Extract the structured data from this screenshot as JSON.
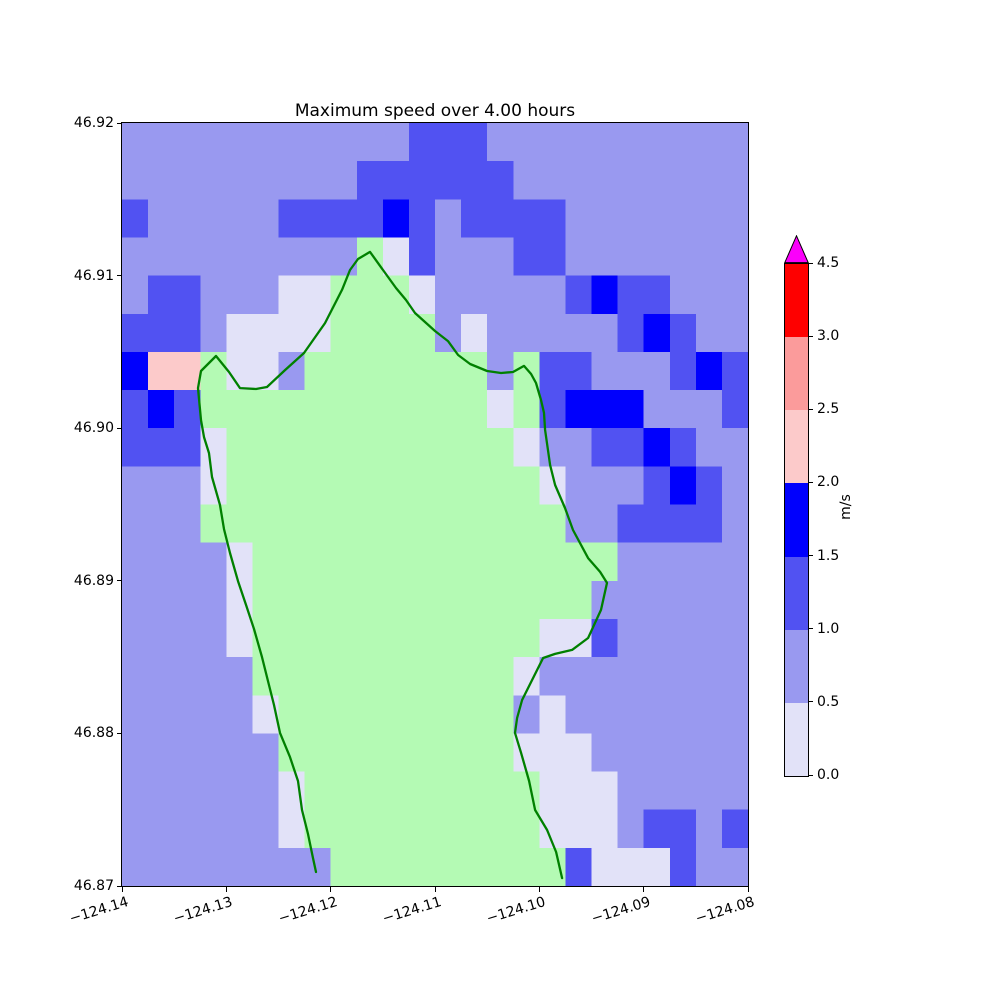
{
  "title": "Maximum speed over 4.00 hours",
  "plot": {
    "x_tick_labels": [
      "−124.14",
      "−124.13",
      "−124.12",
      "−124.11",
      "−124.10",
      "−124.09",
      "−124.08"
    ],
    "x_tick_values": [
      -124.14,
      -124.13,
      -124.12,
      -124.11,
      -124.1,
      -124.09,
      -124.08
    ],
    "y_tick_labels": [
      "46.92",
      "46.91",
      "46.90",
      "46.89",
      "46.88",
      "46.87"
    ],
    "y_tick_values": [
      46.92,
      46.91,
      46.9,
      46.89,
      46.88,
      46.87
    ]
  },
  "colorbar": {
    "label": "m/s",
    "tick_labels": [
      "0.0",
      "0.5",
      "1.0",
      "1.5",
      "2.0",
      "2.5",
      "3.0",
      "4.5"
    ],
    "boundaries": [
      0.0,
      0.5,
      1.0,
      1.5,
      2.0,
      2.5,
      3.0,
      4.5
    ],
    "segment_colors": [
      "#e2e2f8",
      "#9999f0",
      "#5152f2",
      "#0000fd",
      "#fccaca",
      "#fb9b9b",
      "#fe0000"
    ],
    "over_color": "#fb00fb"
  },
  "chart_data": {
    "type": "heatmap",
    "title": "Maximum speed over 4.00 hours",
    "xlabel": "",
    "ylabel": "",
    "units": "m/s",
    "x_range": [
      -124.14,
      -124.08
    ],
    "y_range": [
      46.87,
      46.92
    ],
    "n_cols": 24,
    "n_rows": 20,
    "cell_size_deg": 0.0025,
    "classes": {
      "W": {
        "label": "0.0–0.5 m/s",
        "color": "#e2e2f8"
      },
      "L": {
        "label": "0.5–1.0 m/s",
        "color": "#9999f0"
      },
      "M": {
        "label": "1.0–1.5 m/s",
        "color": "#5152f2"
      },
      "B": {
        "label": "1.5–2.0 m/s",
        "color": "#0000fd"
      },
      "P": {
        "label": "2.0–2.5 m/s",
        "color": "#fccaca"
      },
      "G": {
        "label": "land (masked)",
        "color": "#b4fab4"
      }
    },
    "grid_rows_top_to_bottom": [
      "LLLLLLLLLLLMMMLLLLLLLLLL",
      "LLLLLLLLLMMMMMMLLLLLLLLL",
      "MLLLLLMMMMBMLMMMMLLLLLLL",
      "LLLLLLLLLGWMLLLMMLLLLLLL",
      "LMMLLLWWGGGWLLLLLMBMMLLL",
      "MMMLWWWWGGGGLWLLLLLMBMLL",
      "BPPGWWLGGGGGGGLGMMLLLMBM",
      "MBMGGGGGGGGGGGWGMBBBLLLM",
      "MMMWGGGGGGGGGGGWLLMMBMLL",
      "LLLWGGGGGGGGGGGGWLLLMBML",
      "LLLGGGGGGGGGGGGGGLLMMMML",
      "LLLLWGGGGGGGGGGGGGGLLLLL",
      "LLLLWGGGGGGGGGGGGGLLLLLL",
      "LLLLWGGGGGGGGGGGWWMLLLLL",
      "LLLLLGGGGGGGGGGWLLLLLLLL",
      "LLLLLWGGGGGGGGGLWLLLLLLL",
      "LLLLLLGGGGGGGGGWWWLLLLLL",
      "LLLLLLWGGGGGGGGGWWWLLLLL",
      "LLLLLLWGGGGGGGGGWWWLMMLM",
      "LLLLLLLLGGGGGGGGGMWWWMLL"
    ],
    "coastline_color": "#008000",
    "coastline_lonlat": [
      [
        -124.12141,
        46.87092
      ],
      [
        -124.12169,
        46.87183
      ],
      [
        -124.12217,
        46.87341
      ],
      [
        -124.12275,
        46.87498
      ],
      [
        -124.12313,
        46.87688
      ],
      [
        -124.1239,
        46.87845
      ],
      [
        -124.12486,
        46.88003
      ],
      [
        -124.12543,
        46.88186
      ],
      [
        -124.12601,
        46.88343
      ],
      [
        -124.12658,
        46.885
      ],
      [
        -124.12735,
        46.88684
      ],
      [
        -124.12811,
        46.88841
      ],
      [
        -124.12888,
        46.88998
      ],
      [
        -124.12965,
        46.89182
      ],
      [
        -124.13022,
        46.89339
      ],
      [
        -124.13061,
        46.89496
      ],
      [
        -124.13137,
        46.8968
      ],
      [
        -124.13166,
        46.89837
      ],
      [
        -124.13214,
        46.89942
      ],
      [
        -124.13243,
        46.90053
      ],
      [
        -124.13272,
        46.90263
      ],
      [
        -124.13243,
        46.90375
      ],
      [
        -124.13099,
        46.90473
      ],
      [
        -124.12974,
        46.90368
      ],
      [
        -124.12869,
        46.90263
      ],
      [
        -124.12716,
        46.90257
      ],
      [
        -124.1261,
        46.9027
      ],
      [
        -124.12438,
        46.90381
      ],
      [
        -124.12256,
        46.90493
      ],
      [
        -124.12054,
        46.90689
      ],
      [
        -124.11891,
        46.90906
      ],
      [
        -124.11815,
        46.91037
      ],
      [
        -124.11738,
        46.91109
      ],
      [
        -124.11623,
        46.91155
      ],
      [
        -124.11498,
        46.91037
      ],
      [
        -124.11374,
        46.90919
      ],
      [
        -124.11278,
        46.9084
      ],
      [
        -124.11192,
        46.90755
      ],
      [
        -124.11096,
        46.90696
      ],
      [
        -124.11,
        46.90637
      ],
      [
        -124.10875,
        46.90571
      ],
      [
        -124.10779,
        46.9048
      ],
      [
        -124.10664,
        46.90421
      ],
      [
        -124.10501,
        46.90375
      ],
      [
        -124.10367,
        46.90362
      ],
      [
        -124.10252,
        46.90368
      ],
      [
        -124.10147,
        46.90408
      ],
      [
        -124.10079,
        46.90355
      ],
      [
        -124.10032,
        46.90296
      ],
      [
        -124.09984,
        46.90185
      ],
      [
        -124.09955,
        46.901
      ],
      [
        -124.09945,
        46.89988
      ],
      [
        -124.09897,
        46.89759
      ],
      [
        -124.09849,
        46.89628
      ],
      [
        -124.09754,
        46.89477
      ],
      [
        -124.09677,
        46.89333
      ],
      [
        -124.09533,
        46.89149
      ],
      [
        -124.09418,
        46.89058
      ],
      [
        -124.09351,
        46.88986
      ],
      [
        -124.09409,
        46.88809
      ],
      [
        -124.09533,
        46.88625
      ],
      [
        -124.09686,
        46.88547
      ],
      [
        -124.09849,
        46.88521
      ],
      [
        -124.09964,
        46.88494
      ],
      [
        -124.1005,
        46.88376
      ],
      [
        -124.10165,
        46.88219
      ],
      [
        -124.10213,
        46.88101
      ],
      [
        -124.10233,
        46.88003
      ],
      [
        -124.10175,
        46.87872
      ],
      [
        -124.10098,
        46.87688
      ],
      [
        -124.10041,
        46.87498
      ],
      [
        -124.09926,
        46.87367
      ],
      [
        -124.09839,
        46.87223
      ],
      [
        -124.09782,
        46.87052
      ]
    ],
    "colorbar": {
      "label": "m/s",
      "boundaries": [
        0.0,
        0.5,
        1.0,
        1.5,
        2.0,
        2.5,
        3.0,
        4.5
      ],
      "colors": [
        "#e2e2f8",
        "#9999f0",
        "#5152f2",
        "#0000fd",
        "#fccaca",
        "#fb9b9b",
        "#fe0000"
      ],
      "extend": "max",
      "over_color": "#fb00fb",
      "position": "right"
    },
    "grid": false,
    "legend_position": "right-colorbar"
  }
}
